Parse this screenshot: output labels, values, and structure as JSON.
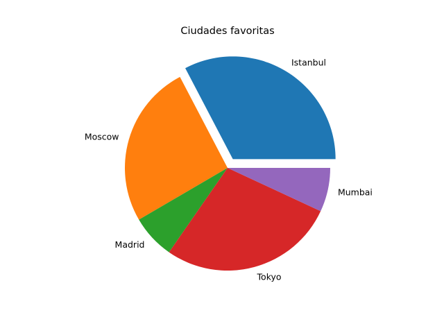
{
  "chart_data": {
    "type": "pie",
    "title": "Ciudades favoritas",
    "categories": [
      "Istanbul",
      "Moscow",
      "Madrid",
      "Tokyo",
      "Mumbai"
    ],
    "values": [
      33,
      26,
      7,
      28,
      7
    ],
    "colors": [
      "#1f77b4",
      "#ff7f0e",
      "#2ca02c",
      "#d62728",
      "#9467bd"
    ],
    "exploded": [
      "Istanbul"
    ],
    "start_angle_deg": 0,
    "direction": "counterclockwise",
    "legend": "none"
  }
}
